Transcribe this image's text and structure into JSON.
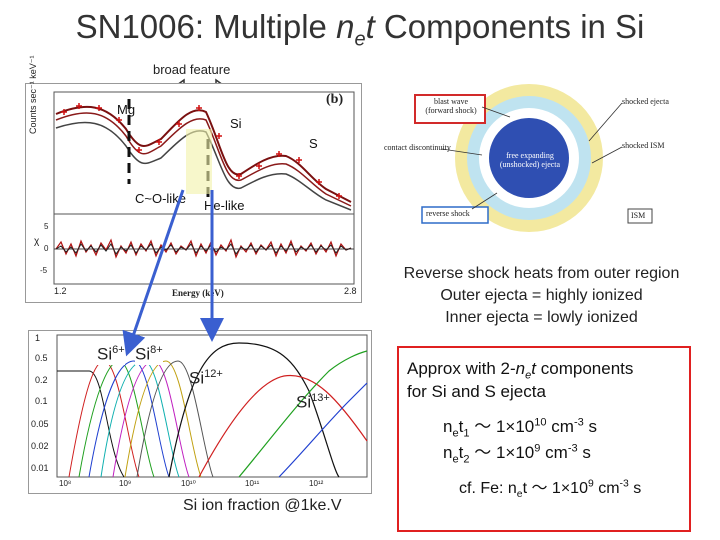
{
  "slide": {
    "title_prefix": "SN1006: Multiple ",
    "title_n": "n",
    "title_e": "e",
    "title_t": "t",
    "title_suffix": " Components in Si"
  },
  "spectrum_panel": {
    "broad_feature_label": "broad feature",
    "panel_letter": "(b)",
    "mg_label": "Mg",
    "si_label": "Si",
    "s_label": "S",
    "co_label": "C~O-like",
    "he_label": "He-like",
    "y_axis_label": "Counts sec⁻¹ keV⁻¹",
    "x_axis_label": "Energy (keV)",
    "chi_label": "χ",
    "x_tick_min": "1.2",
    "x_tick_max": "2.8",
    "residual_ticks": [
      "5",
      "0",
      "-5"
    ]
  },
  "snr_diagram": {
    "blast_wave": "blast wave\n(forward shock)",
    "shocked_ejecta": "shocked ejecta",
    "contact_discontinuity": "contact discontinuity",
    "shocked_ism": "shocked ISM",
    "free_expanding": "free expanding\n(unshocked) ejecta",
    "reverse_shock": "reverse shock",
    "ism": "ISM",
    "colors": {
      "outer_ring": "#f3e9a0",
      "inner_ring": "#bfe3f0",
      "core": "#2f4fb2",
      "box_border": "#d22a2a"
    }
  },
  "reverse_shock_text": {
    "line1": "Reverse shock heats from outer region",
    "line2": "Outer ejecta = highly ionized",
    "line3": "Inner ejecta = lowly ionized"
  },
  "ion_fraction_panel": {
    "y_ticks": [
      "1",
      "0.5",
      "0.2",
      "0.1",
      "0.05",
      "0.02",
      "0.01"
    ],
    "x_ticks": [
      "10⁸",
      "10⁹",
      "10¹⁰",
      "10¹¹",
      "10¹²"
    ],
    "si6_base": "Si",
    "si6_sup": "6+",
    "si8_base": "Si",
    "si8_sup": "8+",
    "si12_base": "Si",
    "si12_sup": "12+",
    "si13_base": "Si",
    "si13_sup": "13+",
    "caption": "Si ion fraction  @1ke.V"
  },
  "approx_box": {
    "line1_prefix": "Approx with 2-",
    "line1_n": "n",
    "line1_e": "e",
    "line1_t": "t",
    "line1_suffix": " components",
    "line2": "for Si and S ejecta",
    "net1_n": "n",
    "net1_e": "e",
    "net1_t": "t",
    "net1_1": "1",
    "net1_mid": " ～ 1×10",
    "net1_exp": "10",
    "net1_unit": " cm",
    "net1_unit_exp": "-3",
    "net1_s": " s",
    "net2_n": "n",
    "net2_e": "e",
    "net2_t": "t",
    "net2_2": "2",
    "net2_mid": " ～ 1×10",
    "net2_exp": "9",
    "net2_unit": " cm",
    "net2_unit_exp": "-3",
    "net2_s": " s",
    "fe_prefix": "cf. Fe: n",
    "fe_e": "e",
    "fe_t": "t",
    "fe_mid": " ～ 1×10",
    "fe_exp": "9",
    "fe_unit": " cm",
    "fe_unit_exp": "-3",
    "fe_s": " s",
    "border_color": "#e02020"
  }
}
